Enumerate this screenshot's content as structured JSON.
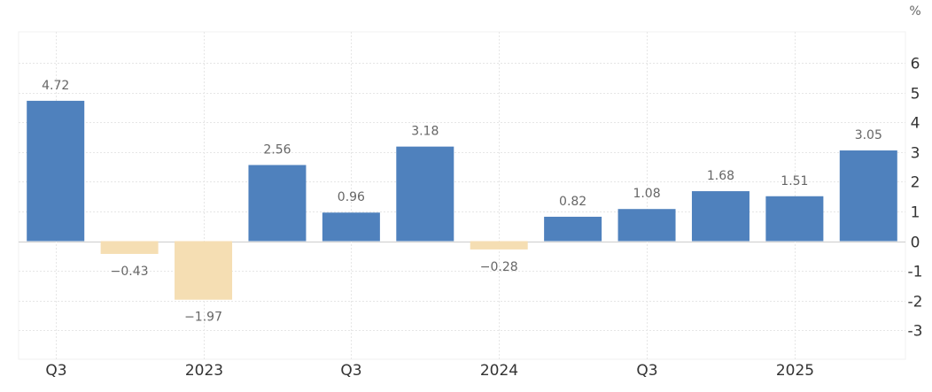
{
  "chart_data": {
    "type": "bar",
    "unit": "%",
    "series": [
      {
        "values": [
          4.72,
          -0.43,
          -1.97,
          2.56,
          0.96,
          3.18,
          -0.28,
          0.82,
          1.08,
          1.68,
          1.51,
          3.05
        ]
      }
    ],
    "value_labels": [
      "4.72",
      "−0.43",
      "−1.97",
      "2.56",
      "0.96",
      "3.18",
      "−0.28",
      "0.82",
      "1.08",
      "1.68",
      "1.51",
      "3.05"
    ],
    "x_tick_labels": [
      {
        "bar_index": 0,
        "label": "Q3"
      },
      {
        "bar_index": 2,
        "label": "2023"
      },
      {
        "bar_index": 4,
        "label": "Q3"
      },
      {
        "bar_index": 6,
        "label": "2024"
      },
      {
        "bar_index": 8,
        "label": "Q3"
      },
      {
        "bar_index": 10,
        "label": "2025"
      }
    ],
    "y_ticks": [
      6,
      5,
      4,
      3,
      2,
      1,
      0,
      -1,
      -2,
      -3
    ],
    "y_tick_labels": [
      "6",
      "5",
      "4",
      "3",
      "2",
      "1",
      "0",
      "-1",
      "-2",
      "-3"
    ],
    "ylim": [
      -3.9,
      7.1
    ],
    "grid": true,
    "colors": {
      "positive": "#4f81bd",
      "negative": "#f5deb3",
      "grid": "#e6e6e6",
      "zero_line": "#cccccc"
    }
  }
}
